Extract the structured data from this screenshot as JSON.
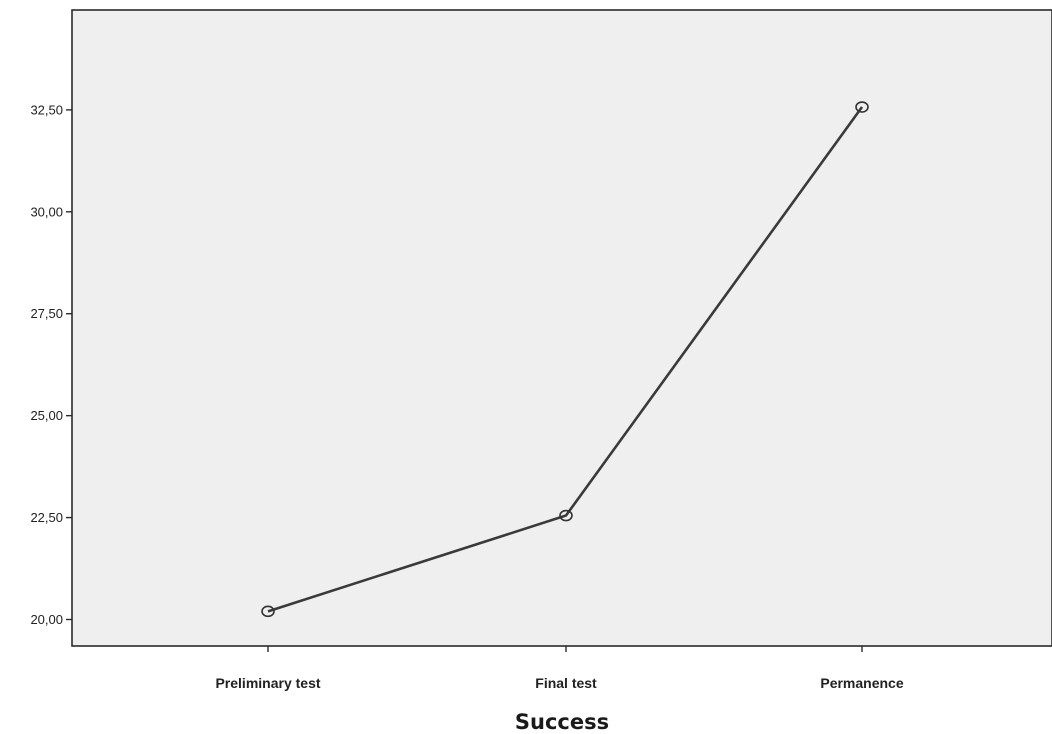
{
  "chart_data": {
    "type": "line",
    "title": "",
    "xlabel": "Success",
    "ylabel": "",
    "categories": [
      "Preliminary test",
      "Final test",
      "Permanence"
    ],
    "series": [
      {
        "values": [
          20.2,
          22.55,
          32.57
        ]
      }
    ],
    "yticks": [
      "20,00",
      "22,50",
      "25,00",
      "27,50",
      "30,00",
      "32,50"
    ],
    "ytick_values": [
      20,
      22.5,
      25,
      27.5,
      30,
      32.5
    ],
    "ylim": [
      19.35,
      34.95
    ],
    "grid": false,
    "legend": "none",
    "colors": {
      "plot_background": "#efefef",
      "line": "#3a3a3a",
      "marker_stroke": "#333333",
      "axis": "#2a2a2a"
    }
  }
}
